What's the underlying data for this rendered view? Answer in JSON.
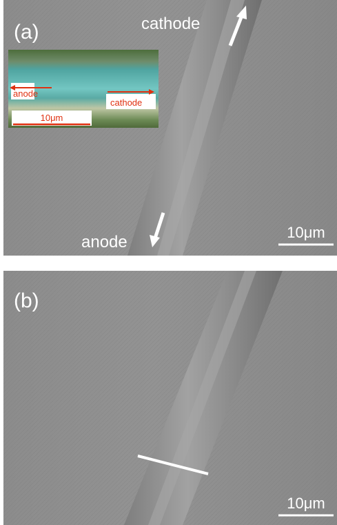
{
  "panel_a": {
    "label": "(a)",
    "cathode_label": "cathode",
    "anode_label": "anode",
    "scale_bar": "10μm",
    "inset": {
      "anode_label": "anode",
      "cathode_label": "cathode",
      "scale_bar": "10μm"
    }
  },
  "panel_b": {
    "label": "(b)",
    "scale_bar": "10μm"
  }
}
